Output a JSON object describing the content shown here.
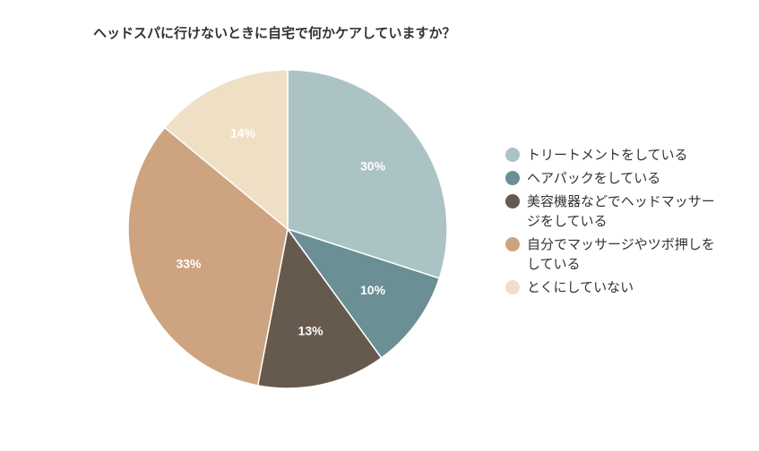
{
  "chart_data": {
    "type": "pie",
    "title": "ヘッドスパに行けないときに自宅で何かケアしていますか？",
    "slices": [
      {
        "label": "トリートメントをしている",
        "value": 30,
        "value_label": "30%",
        "color": "#abc3c4"
      },
      {
        "label": "ヘアパックをしている",
        "value": 10,
        "value_label": "10%",
        "color": "#6a8f95"
      },
      {
        "label": "美容機器などでヘッドマッサージをしている",
        "value": 13,
        "value_label": "13%",
        "color": "#665a4f"
      },
      {
        "label": "自分でマッサージやツボ押しをしている",
        "value": 33,
        "value_label": "33%",
        "color": "#cda47f"
      },
      {
        "label": "とくにしていない",
        "value": 14,
        "value_label": "14%",
        "color": "#efe0c5"
      }
    ],
    "legend_position": "right"
  }
}
